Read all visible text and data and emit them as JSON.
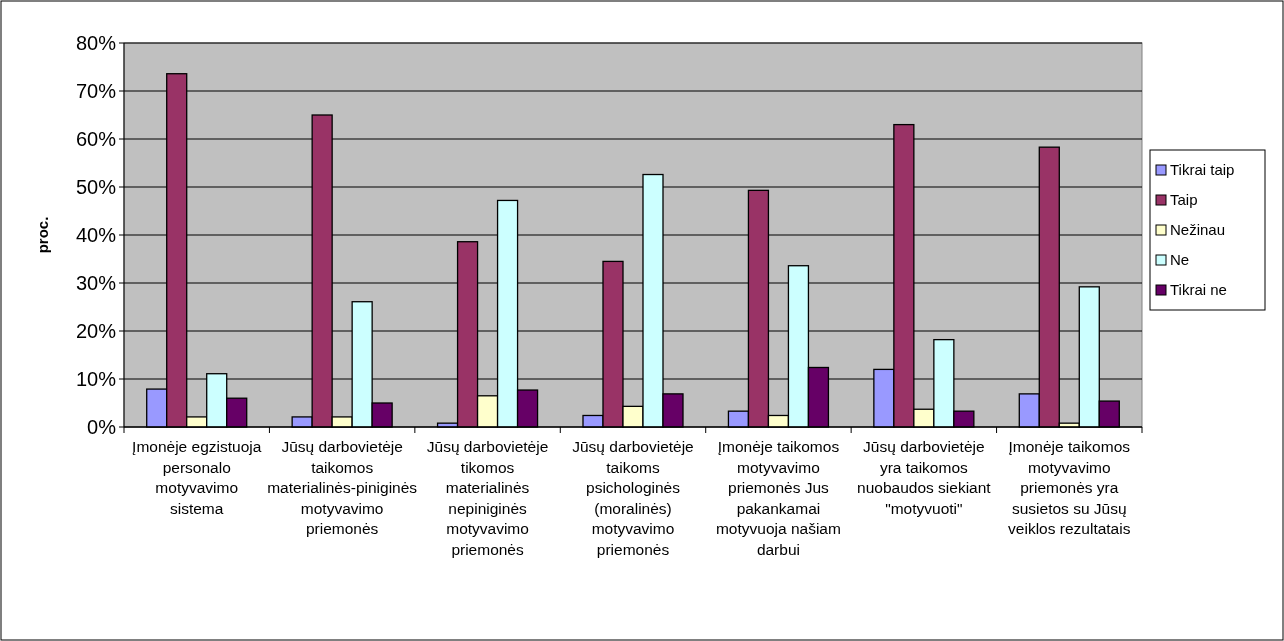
{
  "chart_data": {
    "type": "bar",
    "ylabel": "proc.",
    "categories": [
      "Įmonėje egzistuoja personalo motyvavimo sistema",
      "Jūsų darbovietėje taikomos materialinės-piniginės motyvavimo priemonės",
      "Jūsų darbovietėje tikomos materialinės nepiniginės motyvavimo priemonės",
      "Jūsų darbovietėje taikoms psichologinės (moralinės) motyvavimo priemonės",
      "Įmonėje taikomos motyvavimo priemonės Jus pakankamai motyvuoja našiam darbui",
      "Jūsų darbovietėje yra taikomos nuobaudos siekiant \"motyvuoti\"",
      "Įmonėje taikomos motyvavimo priemonės yra susietos su Jūsų veiklos rezultatais"
    ],
    "series": [
      {
        "name": "Tikrai taip",
        "color": "#9999ff",
        "values": [
          7.9,
          2.1,
          0.8,
          2.4,
          3.3,
          12.0,
          6.9
        ]
      },
      {
        "name": "Taip",
        "color": "#993366",
        "values": [
          73.6,
          65.0,
          38.6,
          34.5,
          49.3,
          63.0,
          58.3
        ]
      },
      {
        "name": "Nežinau",
        "color": "#ffffcc",
        "values": [
          2.1,
          2.1,
          6.5,
          4.3,
          2.4,
          3.7,
          0.8
        ]
      },
      {
        "name": "Ne",
        "color": "#ccffff",
        "values": [
          11.1,
          26.1,
          47.2,
          52.6,
          33.6,
          18.2,
          29.2
        ]
      },
      {
        "name": "Tikrai ne",
        "color": "#660066",
        "values": [
          6.0,
          5.0,
          7.7,
          6.9,
          12.4,
          3.3,
          5.4
        ]
      }
    ],
    "ylim": [
      0,
      80
    ],
    "yticks": [
      {
        "value": 0,
        "label": "0%"
      },
      {
        "value": 10,
        "label": "10%"
      },
      {
        "value": 20,
        "label": "20%"
      },
      {
        "value": 30,
        "label": "30%"
      },
      {
        "value": 40,
        "label": "40%"
      },
      {
        "value": 50,
        "label": "50%"
      },
      {
        "value": 60,
        "label": "60%"
      },
      {
        "value": 70,
        "label": "70%"
      },
      {
        "value": 80,
        "label": "80%"
      }
    ],
    "grid": "y",
    "legend": "right"
  }
}
